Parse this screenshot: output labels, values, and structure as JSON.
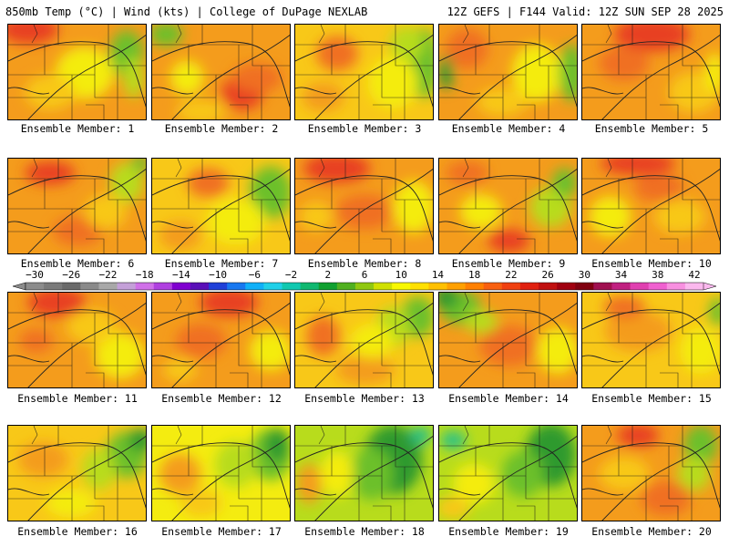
{
  "header": {
    "left": "850mb Temp (°C) | Wind (kts) | College of DuPage NEXLAB",
    "right": "12Z GEFS | F144 Valid: 12Z SUN SEP 28 2025"
  },
  "colorbar": {
    "labels": [
      "−30",
      "−26",
      "−22",
      "−18",
      "−14",
      "−10",
      "−6",
      "−2",
      "2",
      "6",
      "10",
      "14",
      "18",
      "22",
      "26",
      "30",
      "34",
      "38",
      "42"
    ],
    "colors": [
      "#8c8c8c",
      "#7a7a7a",
      "#6a6a6a",
      "#8a8a8a",
      "#a8a8a8",
      "#c4a0d8",
      "#d070e8",
      "#b040e0",
      "#8000d0",
      "#5a10b8",
      "#2040d8",
      "#1878f0",
      "#10b0f8",
      "#20d0e8",
      "#10c8b0",
      "#10b870",
      "#10a030",
      "#50b020",
      "#90c810",
      "#d0e000",
      "#f8f800",
      "#ffe000",
      "#ffc000",
      "#ffa000",
      "#ff8000",
      "#f86010",
      "#f04010",
      "#e02010",
      "#c01010",
      "#a00010",
      "#800010",
      "#a01050",
      "#c02080",
      "#e040b0",
      "#f060d0",
      "#f890e0",
      "#fbb8ee"
    ]
  },
  "captions": [
    "Ensemble Member: 1",
    "Ensemble Member: 2",
    "Ensemble Member: 3",
    "Ensemble Member: 4",
    "Ensemble Member: 5",
    "Ensemble Member: 6",
    "Ensemble Member: 7",
    "Ensemble Member: 8",
    "Ensemble Member: 9",
    "Ensemble Member: 10",
    "Ensemble Member: 11",
    "Ensemble Member: 12",
    "Ensemble Member: 13",
    "Ensemble Member: 14",
    "Ensemble Member: 15",
    "Ensemble Member: 16",
    "Ensemble Member: 17",
    "Ensemble Member: 18",
    "Ensemble Member: 19",
    "Ensemble Member: 20"
  ],
  "palette": {
    "green_dark": "#2e9a2e",
    "green": "#6cc02a",
    "yellow_green": "#b8dc1c",
    "yellow": "#f4ec10",
    "yellow_orange": "#f8c818",
    "orange": "#f49c1c",
    "orange_red": "#f07020",
    "red": "#e84020",
    "teal": "#20c08c",
    "background": "#ffffff"
  },
  "panels": [
    {
      "base": "orange",
      "blobs": [
        [
          "red",
          0.15,
          0.05,
          0.35,
          0.25
        ],
        [
          "yellow",
          0.55,
          0.5,
          0.35,
          0.45
        ],
        [
          "green",
          0.85,
          0.3,
          0.2,
          0.4
        ],
        [
          "yellow_orange",
          0.3,
          0.7,
          0.3,
          0.3
        ],
        [
          "yellow_green",
          0.9,
          0.55,
          0.12,
          0.35
        ]
      ]
    },
    {
      "base": "orange",
      "blobs": [
        [
          "red",
          0.65,
          0.7,
          0.25,
          0.3
        ],
        [
          "yellow",
          0.25,
          0.55,
          0.2,
          0.3
        ],
        [
          "green",
          0.1,
          0.1,
          0.2,
          0.2
        ],
        [
          "orange_red",
          0.75,
          0.55,
          0.3,
          0.25
        ],
        [
          "yellow_orange",
          0.35,
          0.9,
          0.3,
          0.2
        ]
      ]
    },
    {
      "base": "yellow_orange",
      "blobs": [
        [
          "green",
          0.92,
          0.4,
          0.18,
          0.6
        ],
        [
          "yellow",
          0.7,
          0.6,
          0.3,
          0.45
        ],
        [
          "orange_red",
          0.3,
          0.3,
          0.25,
          0.3
        ],
        [
          "yellow_green",
          0.8,
          0.2,
          0.2,
          0.3
        ],
        [
          "orange",
          0.2,
          0.75,
          0.25,
          0.25
        ]
      ]
    },
    {
      "base": "orange",
      "blobs": [
        [
          "yellow",
          0.7,
          0.5,
          0.3,
          0.5
        ],
        [
          "green",
          0.95,
          0.5,
          0.15,
          0.5
        ],
        [
          "orange_red",
          0.2,
          0.25,
          0.25,
          0.35
        ],
        [
          "yellow_orange",
          0.45,
          0.8,
          0.3,
          0.25
        ],
        [
          "green_dark",
          0.05,
          0.5,
          0.08,
          0.3
        ]
      ]
    },
    {
      "base": "orange",
      "blobs": [
        [
          "red",
          0.5,
          0.1,
          0.45,
          0.3
        ],
        [
          "orange_red",
          0.3,
          0.4,
          0.3,
          0.3
        ],
        [
          "yellow_orange",
          0.8,
          0.7,
          0.3,
          0.35
        ],
        [
          "yellow",
          0.95,
          0.5,
          0.12,
          0.35
        ]
      ]
    },
    {
      "base": "orange",
      "blobs": [
        [
          "red",
          0.3,
          0.15,
          0.3,
          0.2
        ],
        [
          "yellow_green",
          0.85,
          0.25,
          0.2,
          0.35
        ],
        [
          "green",
          0.95,
          0.05,
          0.1,
          0.15
        ],
        [
          "orange_red",
          0.5,
          0.75,
          0.3,
          0.25
        ],
        [
          "yellow_orange",
          0.7,
          0.55,
          0.25,
          0.3
        ]
      ]
    },
    {
      "base": "yellow_orange",
      "blobs": [
        [
          "green",
          0.85,
          0.35,
          0.25,
          0.45
        ],
        [
          "orange_red",
          0.4,
          0.25,
          0.25,
          0.25
        ],
        [
          "yellow",
          0.6,
          0.65,
          0.35,
          0.4
        ],
        [
          "orange",
          0.2,
          0.8,
          0.25,
          0.25
        ]
      ]
    },
    {
      "base": "orange",
      "blobs": [
        [
          "red",
          0.3,
          0.1,
          0.4,
          0.25
        ],
        [
          "orange_red",
          0.5,
          0.55,
          0.35,
          0.3
        ],
        [
          "yellow",
          0.85,
          0.5,
          0.25,
          0.45
        ],
        [
          "yellow_orange",
          0.15,
          0.6,
          0.2,
          0.25
        ]
      ]
    },
    {
      "base": "orange",
      "blobs": [
        [
          "red",
          0.5,
          0.85,
          0.25,
          0.2
        ],
        [
          "yellow",
          0.3,
          0.55,
          0.25,
          0.3
        ],
        [
          "orange_red",
          0.2,
          0.15,
          0.25,
          0.2
        ],
        [
          "yellow_green",
          0.8,
          0.5,
          0.25,
          0.35
        ],
        [
          "green",
          0.9,
          0.25,
          0.15,
          0.25
        ]
      ]
    },
    {
      "base": "orange",
      "blobs": [
        [
          "red",
          0.4,
          0.05,
          0.45,
          0.2
        ],
        [
          "yellow",
          0.2,
          0.6,
          0.25,
          0.35
        ],
        [
          "yellow_orange",
          0.7,
          0.6,
          0.3,
          0.3
        ],
        [
          "orange_red",
          0.55,
          0.3,
          0.3,
          0.25
        ]
      ]
    },
    {
      "base": "orange",
      "blobs": [
        [
          "red",
          0.35,
          0.1,
          0.35,
          0.25
        ],
        [
          "yellow",
          0.8,
          0.65,
          0.3,
          0.4
        ],
        [
          "yellow_orange",
          0.6,
          0.35,
          0.3,
          0.3
        ],
        [
          "orange_red",
          0.2,
          0.5,
          0.2,
          0.2
        ]
      ]
    },
    {
      "base": "orange",
      "blobs": [
        [
          "red",
          0.55,
          0.1,
          0.35,
          0.25
        ],
        [
          "orange_red",
          0.35,
          0.5,
          0.3,
          0.3
        ],
        [
          "yellow",
          0.85,
          0.6,
          0.25,
          0.35
        ],
        [
          "yellow_orange",
          0.2,
          0.8,
          0.2,
          0.2
        ]
      ]
    },
    {
      "base": "yellow_orange",
      "blobs": [
        [
          "green",
          0.88,
          0.25,
          0.2,
          0.35
        ],
        [
          "yellow_green",
          0.7,
          0.35,
          0.2,
          0.35
        ],
        [
          "orange_red",
          0.2,
          0.45,
          0.2,
          0.35
        ],
        [
          "orange",
          0.5,
          0.8,
          0.35,
          0.25
        ],
        [
          "yellow",
          0.55,
          0.5,
          0.25,
          0.3
        ]
      ]
    },
    {
      "base": "orange",
      "blobs": [
        [
          "green",
          0.15,
          0.15,
          0.25,
          0.3
        ],
        [
          "green_dark",
          0.05,
          0.05,
          0.15,
          0.2
        ],
        [
          "orange_red",
          0.5,
          0.55,
          0.35,
          0.35
        ],
        [
          "yellow",
          0.85,
          0.6,
          0.25,
          0.4
        ],
        [
          "yellow_green",
          0.3,
          0.3,
          0.2,
          0.2
        ]
      ]
    },
    {
      "base": "yellow_orange",
      "blobs": [
        [
          "orange",
          0.4,
          0.4,
          0.4,
          0.35
        ],
        [
          "yellow",
          0.85,
          0.6,
          0.25,
          0.4
        ],
        [
          "green",
          0.97,
          0.2,
          0.1,
          0.25
        ],
        [
          "orange_red",
          0.3,
          0.15,
          0.25,
          0.2
        ]
      ]
    },
    {
      "base": "yellow_orange",
      "blobs": [
        [
          "green",
          0.85,
          0.3,
          0.25,
          0.4
        ],
        [
          "green_dark",
          0.95,
          0.15,
          0.15,
          0.2
        ],
        [
          "yellow_green",
          0.65,
          0.45,
          0.2,
          0.35
        ],
        [
          "orange",
          0.25,
          0.35,
          0.3,
          0.3
        ],
        [
          "yellow",
          0.45,
          0.8,
          0.3,
          0.25
        ]
      ]
    },
    {
      "base": "yellow",
      "blobs": [
        [
          "green",
          0.85,
          0.3,
          0.25,
          0.45
        ],
        [
          "green_dark",
          0.9,
          0.2,
          0.15,
          0.3
        ],
        [
          "yellow_green",
          0.6,
          0.4,
          0.25,
          0.4
        ],
        [
          "orange",
          0.2,
          0.5,
          0.25,
          0.35
        ],
        [
          "yellow_orange",
          0.35,
          0.8,
          0.25,
          0.25
        ]
      ]
    },
    {
      "base": "yellow_green",
      "blobs": [
        [
          "green_dark",
          0.7,
          0.35,
          0.35,
          0.6
        ],
        [
          "teal",
          0.9,
          0.1,
          0.12,
          0.15
        ],
        [
          "green",
          0.55,
          0.5,
          0.25,
          0.45
        ],
        [
          "orange",
          0.1,
          0.6,
          0.15,
          0.35
        ],
        [
          "yellow",
          0.3,
          0.5,
          0.2,
          0.4
        ]
      ]
    },
    {
      "base": "yellow_green",
      "blobs": [
        [
          "green_dark",
          0.8,
          0.3,
          0.3,
          0.55
        ],
        [
          "teal",
          0.1,
          0.15,
          0.15,
          0.15
        ],
        [
          "green",
          0.6,
          0.5,
          0.25,
          0.4
        ],
        [
          "yellow",
          0.25,
          0.6,
          0.25,
          0.35
        ],
        [
          "yellow_orange",
          0.1,
          0.85,
          0.2,
          0.2
        ]
      ]
    },
    {
      "base": "orange",
      "blobs": [
        [
          "green",
          0.85,
          0.2,
          0.2,
          0.35
        ],
        [
          "yellow_green",
          0.8,
          0.5,
          0.2,
          0.3
        ],
        [
          "red",
          0.4,
          0.1,
          0.25,
          0.2
        ],
        [
          "orange_red",
          0.6,
          0.75,
          0.3,
          0.3
        ],
        [
          "yellow_orange",
          0.3,
          0.5,
          0.3,
          0.3
        ]
      ]
    }
  ]
}
